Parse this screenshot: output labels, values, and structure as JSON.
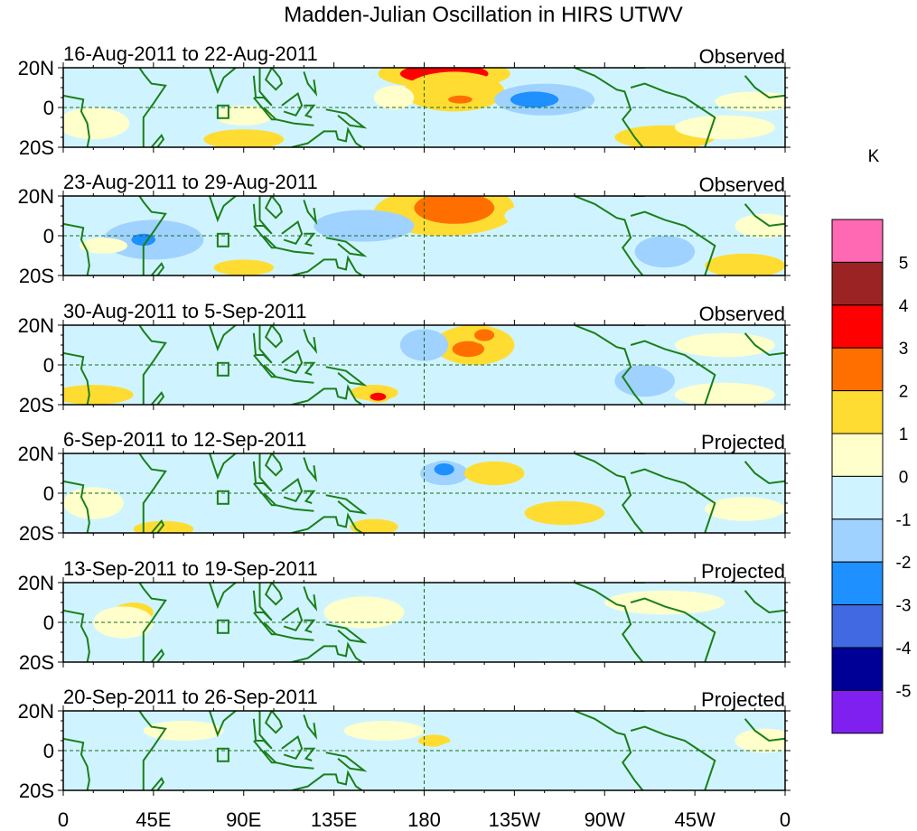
{
  "chart_data": {
    "type": "heatmap",
    "title": "Madden-Julian Oscillation in HIRS UTWV",
    "units_label": "K",
    "x_ticks": [
      "0",
      "45E",
      "90E",
      "135E",
      "180",
      "135W",
      "90W",
      "45W",
      "0"
    ],
    "x_range": [
      0,
      360
    ],
    "y_ticks": [
      "20N",
      "0",
      "20S"
    ],
    "y_range": [
      -20,
      20
    ],
    "colorbar": {
      "labels": [
        "5",
        "4",
        "3",
        "2",
        "1",
        "0",
        "-1",
        "-2",
        "-3",
        "-4",
        "-5"
      ],
      "colors": [
        "#ff69b4",
        "#9b2323",
        "#ff0000",
        "#ff6f00",
        "#ffdc32",
        "#ffffcc",
        "#d0f4ff",
        "#a0d2ff",
        "#1e90ff",
        "#4169e1",
        "#000096",
        "#8020f0"
      ]
    },
    "panels": [
      {
        "dates": "16-Aug-2011 to 22-Aug-2011",
        "kind": "Observed",
        "anomalies": [
          [
            190,
            17,
            22,
            5,
            3.5
          ],
          [
            195,
            8,
            25,
            10,
            1.5
          ],
          [
            198,
            4,
            6,
            2,
            2.5
          ],
          [
            240,
            4,
            25,
            8,
            -1.5
          ],
          [
            235,
            4,
            12,
            4,
            -2.5
          ],
          [
            15,
            -8,
            18,
            8,
            0.5
          ],
          [
            90,
            -16,
            20,
            5,
            1.5
          ],
          [
            90,
            -4,
            15,
            5,
            0.5
          ],
          [
            300,
            -15,
            25,
            6,
            1
          ],
          [
            60,
            -5,
            18,
            12,
            -1
          ],
          [
            165,
            5,
            10,
            6,
            0.8
          ],
          [
            330,
            -10,
            25,
            6,
            0.5
          ],
          [
            345,
            3,
            20,
            5,
            0.5
          ]
        ]
      },
      {
        "dates": "23-Aug-2011 to 29-Aug-2011",
        "kind": "Observed",
        "anomalies": [
          [
            190,
            12,
            35,
            12,
            1.5
          ],
          [
            195,
            14,
            20,
            8,
            2.5
          ],
          [
            45,
            -2,
            25,
            10,
            -1.5
          ],
          [
            40,
            -2,
            6,
            3,
            -2.5
          ],
          [
            105,
            0,
            20,
            10,
            -1
          ],
          [
            150,
            5,
            25,
            8,
            -1.2
          ],
          [
            90,
            -16,
            15,
            4,
            1
          ],
          [
            250,
            10,
            30,
            8,
            -1
          ],
          [
            300,
            -8,
            15,
            8,
            -1.2
          ],
          [
            340,
            -15,
            20,
            6,
            1.2
          ],
          [
            20,
            -5,
            12,
            4,
            0.5
          ],
          [
            350,
            5,
            15,
            6,
            0.5
          ]
        ]
      },
      {
        "dates": "30-Aug-2011 to 5-Sep-2011",
        "kind": "Observed",
        "anomalies": [
          [
            205,
            10,
            20,
            10,
            1.5
          ],
          [
            202,
            8,
            8,
            4,
            2.5
          ],
          [
            210,
            15,
            5,
            3,
            2.5
          ],
          [
            155,
            -14,
            12,
            4,
            1.3
          ],
          [
            157,
            -16,
            4,
            2,
            3
          ],
          [
            60,
            5,
            20,
            8,
            -1
          ],
          [
            180,
            10,
            12,
            8,
            -1.2
          ],
          [
            270,
            -5,
            30,
            10,
            -1
          ],
          [
            290,
            -8,
            15,
            8,
            -1.5
          ],
          [
            330,
            -15,
            25,
            6,
            0.8
          ],
          [
            15,
            -15,
            20,
            5,
            1
          ],
          [
            330,
            10,
            25,
            6,
            0.5
          ]
        ]
      },
      {
        "dates": "6-Sep-2011 to 12-Sep-2011",
        "kind": "Projected",
        "anomalies": [
          [
            190,
            10,
            12,
            6,
            -1.5
          ],
          [
            190,
            12,
            5,
            3,
            -2.5
          ],
          [
            215,
            10,
            15,
            6,
            1
          ],
          [
            50,
            -18,
            15,
            4,
            1.2
          ],
          [
            155,
            -17,
            12,
            4,
            1.2
          ],
          [
            250,
            -10,
            20,
            6,
            1
          ],
          [
            125,
            -5,
            25,
            8,
            -1
          ],
          [
            290,
            5,
            20,
            8,
            -1
          ],
          [
            15,
            -5,
            15,
            8,
            0.5
          ],
          [
            340,
            -8,
            20,
            6,
            0.5
          ]
        ]
      },
      {
        "dates": "13-Sep-2011 to 19-Sep-2011",
        "kind": "Projected",
        "anomalies": [
          [
            200,
            -5,
            30,
            15,
            -1
          ],
          [
            240,
            5,
            20,
            10,
            -0.9
          ],
          [
            35,
            5,
            10,
            5,
            1.2
          ],
          [
            30,
            0,
            15,
            8,
            0.5
          ],
          [
            110,
            -10,
            30,
            6,
            -0.8
          ],
          [
            300,
            10,
            30,
            6,
            0.5
          ],
          [
            350,
            -15,
            15,
            5,
            -0.8
          ],
          [
            150,
            5,
            20,
            8,
            0.5
          ]
        ]
      },
      {
        "dates": "20-Sep-2011 to 26-Sep-2011",
        "kind": "Projected",
        "anomalies": [
          [
            185,
            5,
            8,
            3,
            1.2
          ],
          [
            215,
            -5,
            35,
            12,
            -0.8
          ],
          [
            300,
            5,
            35,
            10,
            -0.7
          ],
          [
            20,
            -15,
            20,
            5,
            -0.9
          ],
          [
            100,
            -15,
            25,
            5,
            -0.7
          ],
          [
            160,
            10,
            20,
            5,
            0.5
          ],
          [
            350,
            5,
            15,
            6,
            0.5
          ],
          [
            60,
            10,
            20,
            5,
            0.4
          ]
        ]
      }
    ]
  }
}
